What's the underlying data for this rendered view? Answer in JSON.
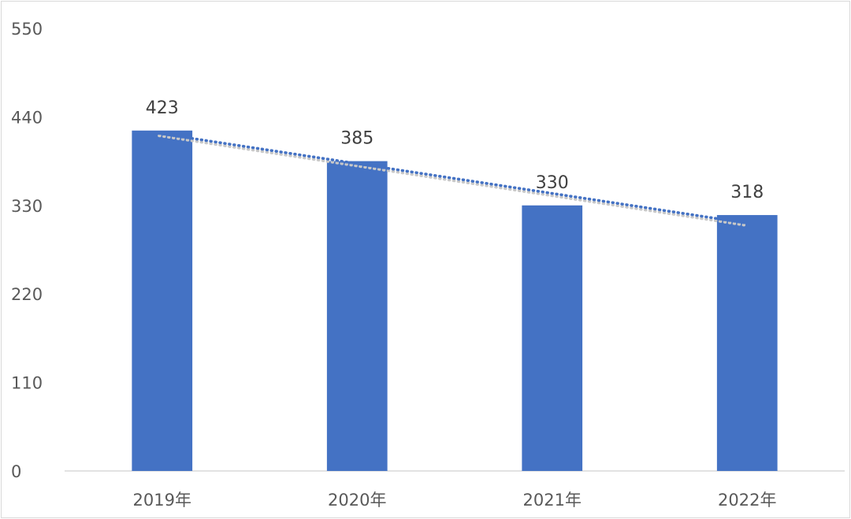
{
  "chart_data": {
    "type": "bar",
    "title": "",
    "xlabel": "",
    "ylabel": "",
    "categories": [
      "2019年",
      "2020年",
      "2021年",
      "2022年"
    ],
    "series": [
      {
        "values": [
          423,
          385,
          330,
          318
        ],
        "color": "#4472C4",
        "data_labels": true
      }
    ],
    "ylim": [
      0,
      550
    ],
    "yticks": [
      "0",
      "110",
      "220",
      "330",
      "440",
      "550"
    ],
    "grid": false,
    "legend": "none",
    "trendline": {
      "type": "linear",
      "style": "dotted",
      "color": "#4472C4"
    }
  }
}
